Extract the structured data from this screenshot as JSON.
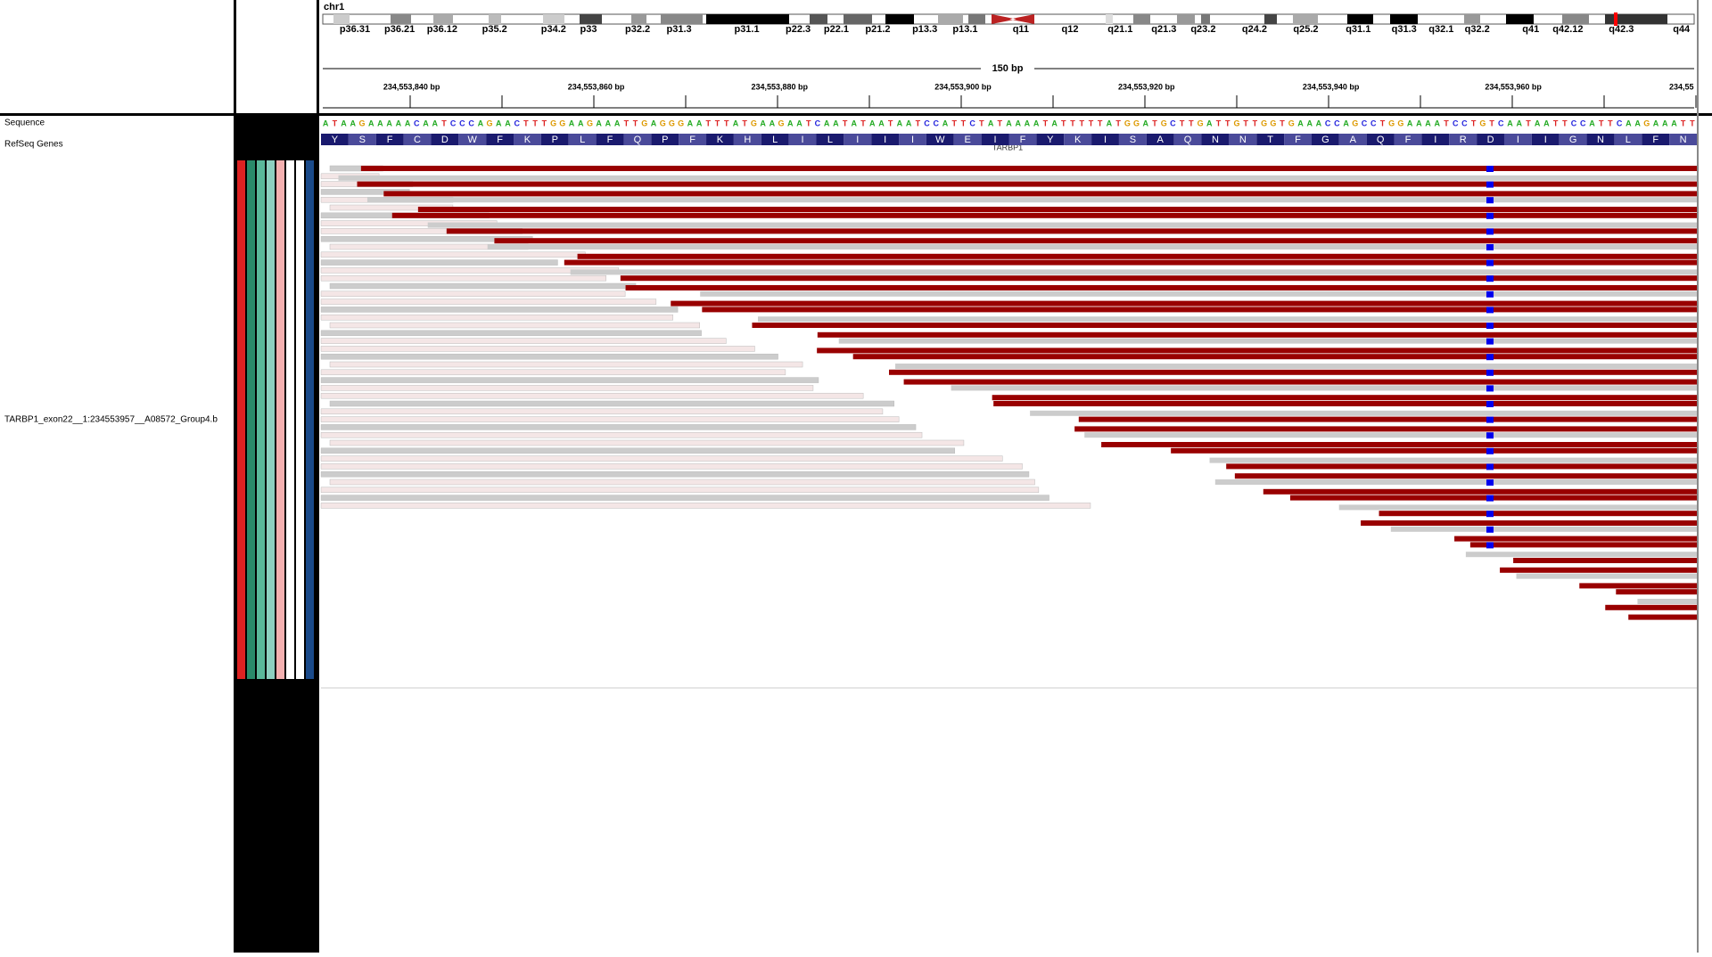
{
  "header": {
    "chromosome": "chr1",
    "cytobands": [
      "p36.31",
      "p36.21",
      "p36.12",
      "p35.2",
      "p34.2",
      "p33",
      "p32.2",
      "p31.3",
      "p31.1",
      "p22.3",
      "p22.1",
      "p21.2",
      "p13.3",
      "p13.1",
      "q11",
      "q12",
      "q21.1",
      "q21.3",
      "q23.2",
      "q24.2",
      "q25.2",
      "q31.1",
      "q31.3",
      "q32.1",
      "q32.2",
      "q41",
      "q42.12",
      "q42.3",
      "q44"
    ],
    "span": "150 bp",
    "positions": [
      "234,553,840 bp",
      "234,553,860 bp",
      "234,553,880 bp",
      "234,553,900 bp",
      "234,553,920 bp",
      "234,553,940 bp",
      "234,553,960 bp",
      "234,55"
    ]
  },
  "tracks": {
    "sequence_label": "Sequence",
    "genes_label": "RefSeq Genes",
    "alignment_label": "TARBP1_exon22__1:234553957__A08572_Group4.b",
    "bases": [
      "A",
      "T",
      "A",
      "A",
      "G",
      "A",
      "A",
      "A",
      "A",
      "A",
      "C",
      "A",
      "A",
      "T",
      "C",
      "C",
      "C",
      "A",
      "G",
      "A",
      "A",
      "C",
      "T",
      "T",
      "T",
      "G",
      "G",
      "A",
      "A",
      "G",
      "A",
      "A",
      "A",
      "T",
      "T",
      "G",
      "A",
      "G",
      "G",
      "G",
      "A",
      "A",
      "T",
      "T",
      "T",
      "A",
      "T",
      "G",
      "A",
      "A",
      "G",
      "A",
      "A",
      "T",
      "C",
      "A",
      "A",
      "T",
      "A",
      "T",
      "A",
      "A",
      "T",
      "A",
      "A",
      "T",
      "C",
      "C",
      "A",
      "T",
      "T",
      "C",
      "T",
      "A",
      "T",
      "A",
      "A",
      "A",
      "A",
      "T",
      "A",
      "T",
      "T",
      "T",
      "T",
      "T",
      "A",
      "T",
      "G",
      "G",
      "A",
      "T",
      "G",
      "C",
      "T",
      "T",
      "G",
      "A",
      "T",
      "T",
      "G",
      "T",
      "T",
      "G",
      "G",
      "T",
      "G",
      "A",
      "A",
      "A",
      "C",
      "C",
      "A",
      "G",
      "C",
      "C",
      "T",
      "G",
      "G",
      "A",
      "A",
      "A",
      "A",
      "T",
      "C",
      "C",
      "T",
      "G",
      "T",
      "C",
      "A",
      "A",
      "T",
      "A",
      "A",
      "T",
      "T",
      "C",
      "C",
      "A",
      "T",
      "T",
      "C",
      "A",
      "A",
      "G",
      "A",
      "A",
      "A",
      "T",
      "T"
    ],
    "amino_acids": [
      "Y",
      "S",
      "F",
      "C",
      "D",
      "W",
      "F",
      "K",
      "P",
      "L",
      "F",
      "Q",
      "P",
      "F",
      "K",
      "H",
      "L",
      "I",
      "L",
      "I",
      "I",
      "I",
      "W",
      "E",
      "I",
      "F",
      "Y",
      "K",
      "I",
      "S",
      "A",
      "Q",
      "N",
      "N",
      "T",
      "F",
      "G",
      "A",
      "Q",
      "F",
      "I",
      "R",
      "D",
      "I",
      "I",
      "G",
      "N",
      "L",
      "F",
      "N"
    ],
    "gene": "TARBP1"
  }
}
